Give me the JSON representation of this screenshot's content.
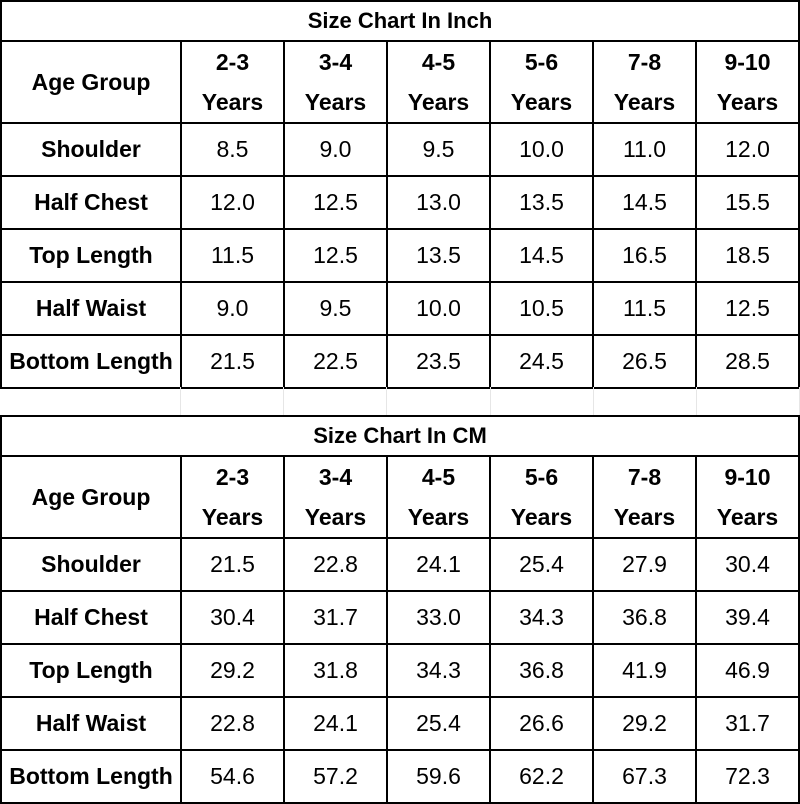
{
  "charts": [
    {
      "title": "Size Chart In Inch",
      "header_label": "Age Group",
      "columns": [
        {
          "range": "2-3",
          "unit": "Years"
        },
        {
          "range": "3-4",
          "unit": "Years"
        },
        {
          "range": "4-5",
          "unit": "Years"
        },
        {
          "range": "5-6",
          "unit": "Years"
        },
        {
          "range": "7-8",
          "unit": "Years"
        },
        {
          "range": "9-10",
          "unit": "Years"
        }
      ],
      "rows": [
        {
          "label": "Shoulder",
          "values": [
            "8.5",
            "9.0",
            "9.5",
            "10.0",
            "11.0",
            "12.0"
          ]
        },
        {
          "label": "Half Chest",
          "values": [
            "12.0",
            "12.5",
            "13.0",
            "13.5",
            "14.5",
            "15.5"
          ]
        },
        {
          "label": "Top Length",
          "values": [
            "11.5",
            "12.5",
            "13.5",
            "14.5",
            "16.5",
            "18.5"
          ]
        },
        {
          "label": "Half Waist",
          "values": [
            "9.0",
            "9.5",
            "10.0",
            "10.5",
            "11.5",
            "12.5"
          ]
        },
        {
          "label": "Bottom Length",
          "values": [
            "21.5",
            "22.5",
            "23.5",
            "24.5",
            "26.5",
            "28.5"
          ]
        }
      ]
    },
    {
      "title": "Size Chart In CM",
      "header_label": "Age Group",
      "columns": [
        {
          "range": "2-3",
          "unit": "Years"
        },
        {
          "range": "3-4",
          "unit": "Years"
        },
        {
          "range": "4-5",
          "unit": "Years"
        },
        {
          "range": "5-6",
          "unit": "Years"
        },
        {
          "range": "7-8",
          "unit": "Years"
        },
        {
          "range": "9-10",
          "unit": "Years"
        }
      ],
      "rows": [
        {
          "label": "Shoulder",
          "values": [
            "21.5",
            "22.8",
            "24.1",
            "25.4",
            "27.9",
            "30.4"
          ]
        },
        {
          "label": "Half Chest",
          "values": [
            "30.4",
            "31.7",
            "33.0",
            "34.3",
            "36.8",
            "39.4"
          ]
        },
        {
          "label": "Top Length",
          "values": [
            "29.2",
            "31.8",
            "34.3",
            "36.8",
            "41.9",
            "46.9"
          ]
        },
        {
          "label": "Half Waist",
          "values": [
            "22.8",
            "24.1",
            "25.4",
            "26.6",
            "29.2",
            "31.7"
          ]
        },
        {
          "label": "Bottom Length",
          "values": [
            "54.6",
            "57.2",
            "59.6",
            "62.2",
            "67.3",
            "72.3"
          ]
        }
      ]
    }
  ]
}
